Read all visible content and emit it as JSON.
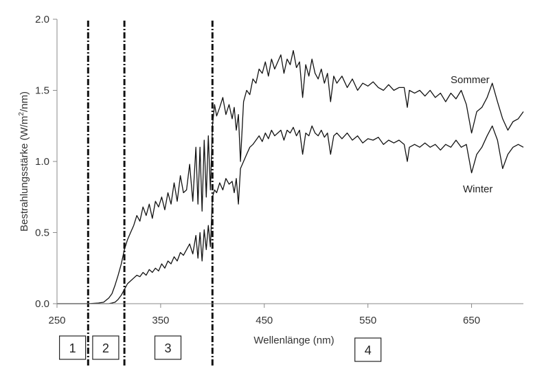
{
  "chart_data": {
    "type": "line",
    "xlabel": "Wellenlänge (nm)",
    "ylabel_main": "Bestrahlungsstärke (W/m",
    "ylabel_sup": "2",
    "ylabel_tail": "/nm)",
    "xlim": [
      250,
      700
    ],
    "ylim": [
      0,
      2.0
    ],
    "xticks": [
      250,
      350,
      450,
      550,
      650
    ],
    "xtick_labels": [
      "250",
      "350",
      "450",
      "550",
      "650"
    ],
    "yticks": [
      0,
      0.5,
      1.0,
      1.5,
      2.0
    ],
    "ytick_labels": [
      "0.0",
      "0.5",
      "1.0",
      "1.5",
      "2.0"
    ],
    "grid": false,
    "boundaries": [
      280,
      315,
      400
    ],
    "regions": [
      {
        "label": "1",
        "x_center": 265
      },
      {
        "label": "2",
        "x_center": 297
      },
      {
        "label": "3",
        "x_center": 357
      },
      {
        "label": "4",
        "x_center": 550
      }
    ],
    "series": [
      {
        "name": "Sommer",
        "color": "#111111",
        "x": [
          250,
          280,
          290,
          295,
          300,
          303,
          306,
          309,
          312,
          315,
          318,
          321,
          324,
          327,
          330,
          333,
          336,
          339,
          342,
          345,
          348,
          351,
          354,
          357,
          360,
          363,
          366,
          369,
          372,
          375,
          378,
          381,
          384,
          386,
          388,
          390,
          392,
          394,
          396,
          398,
          400,
          402,
          404,
          407,
          410,
          413,
          416,
          419,
          421,
          423,
          425,
          427,
          430,
          433,
          436,
          439,
          442,
          445,
          448,
          451,
          454,
          457,
          460,
          463,
          466,
          469,
          472,
          475,
          478,
          481,
          484,
          487,
          490,
          493,
          496,
          499,
          502,
          505,
          508,
          511,
          514,
          517,
          520,
          525,
          530,
          535,
          540,
          545,
          550,
          555,
          560,
          565,
          570,
          575,
          580,
          585,
          588,
          590,
          595,
          600,
          605,
          610,
          615,
          620,
          625,
          630,
          635,
          640,
          645,
          650,
          655,
          660,
          665,
          670,
          675,
          680,
          685,
          690,
          695,
          700
        ],
        "y": [
          0,
          0,
          0.005,
          0.01,
          0.04,
          0.07,
          0.13,
          0.2,
          0.28,
          0.38,
          0.45,
          0.5,
          0.55,
          0.62,
          0.58,
          0.68,
          0.62,
          0.7,
          0.6,
          0.72,
          0.68,
          0.75,
          0.66,
          0.78,
          0.7,
          0.85,
          0.72,
          0.9,
          0.78,
          0.8,
          0.98,
          0.72,
          1.1,
          0.7,
          1.1,
          0.65,
          1.15,
          0.75,
          1.18,
          0.8,
          1.25,
          1.4,
          1.32,
          1.38,
          1.45,
          1.33,
          1.4,
          1.3,
          1.38,
          1.22,
          1.33,
          1.0,
          1.42,
          1.5,
          1.47,
          1.58,
          1.55,
          1.65,
          1.62,
          1.7,
          1.6,
          1.72,
          1.65,
          1.7,
          1.75,
          1.62,
          1.72,
          1.68,
          1.78,
          1.66,
          1.7,
          1.45,
          1.68,
          1.6,
          1.72,
          1.62,
          1.58,
          1.65,
          1.55,
          1.62,
          1.42,
          1.6,
          1.55,
          1.6,
          1.52,
          1.58,
          1.5,
          1.55,
          1.53,
          1.56,
          1.52,
          1.5,
          1.54,
          1.5,
          1.52,
          1.52,
          1.38,
          1.5,
          1.48,
          1.5,
          1.46,
          1.5,
          1.45,
          1.48,
          1.42,
          1.48,
          1.44,
          1.5,
          1.4,
          1.2,
          1.35,
          1.38,
          1.45,
          1.55,
          1.42,
          1.3,
          1.22,
          1.28,
          1.3,
          1.35
        ]
      },
      {
        "name": "Winter",
        "color": "#111111",
        "x": [
          250,
          300,
          303,
          306,
          309,
          312,
          315,
          318,
          321,
          324,
          327,
          330,
          333,
          336,
          339,
          342,
          345,
          348,
          351,
          354,
          357,
          360,
          363,
          366,
          369,
          372,
          375,
          378,
          381,
          384,
          386,
          388,
          390,
          392,
          394,
          396,
          398,
          400,
          402,
          404,
          407,
          410,
          413,
          416,
          419,
          421,
          423,
          425,
          427,
          430,
          433,
          436,
          439,
          442,
          445,
          448,
          451,
          454,
          457,
          460,
          463,
          466,
          469,
          472,
          475,
          478,
          481,
          484,
          487,
          490,
          493,
          496,
          499,
          502,
          505,
          508,
          511,
          514,
          517,
          520,
          525,
          530,
          535,
          540,
          545,
          550,
          555,
          560,
          565,
          570,
          575,
          580,
          585,
          588,
          590,
          595,
          600,
          605,
          610,
          615,
          620,
          625,
          630,
          635,
          640,
          645,
          650,
          655,
          660,
          665,
          670,
          675,
          680,
          685,
          690,
          695,
          700
        ],
        "y": [
          0,
          0,
          0.005,
          0.01,
          0.03,
          0.06,
          0.1,
          0.14,
          0.16,
          0.18,
          0.2,
          0.19,
          0.22,
          0.2,
          0.24,
          0.22,
          0.25,
          0.23,
          0.28,
          0.25,
          0.3,
          0.28,
          0.33,
          0.3,
          0.36,
          0.34,
          0.38,
          0.42,
          0.35,
          0.48,
          0.32,
          0.5,
          0.3,
          0.52,
          0.38,
          0.55,
          0.4,
          0.75,
          0.8,
          0.78,
          0.85,
          0.8,
          0.88,
          0.84,
          0.86,
          0.78,
          0.88,
          0.7,
          0.95,
          1.0,
          1.05,
          1.1,
          1.12,
          1.15,
          1.18,
          1.14,
          1.2,
          1.16,
          1.22,
          1.18,
          1.2,
          1.22,
          1.15,
          1.22,
          1.2,
          1.24,
          1.18,
          1.22,
          1.05,
          1.2,
          1.18,
          1.25,
          1.2,
          1.18,
          1.22,
          1.17,
          1.2,
          1.05,
          1.18,
          1.2,
          1.16,
          1.2,
          1.15,
          1.18,
          1.13,
          1.16,
          1.15,
          1.17,
          1.12,
          1.15,
          1.13,
          1.15,
          1.12,
          1.0,
          1.1,
          1.12,
          1.1,
          1.13,
          1.1,
          1.12,
          1.08,
          1.12,
          1.1,
          1.15,
          1.1,
          1.12,
          0.92,
          1.05,
          1.1,
          1.18,
          1.25,
          1.15,
          0.95,
          1.05,
          1.1,
          1.12,
          1.1
        ]
      }
    ]
  }
}
